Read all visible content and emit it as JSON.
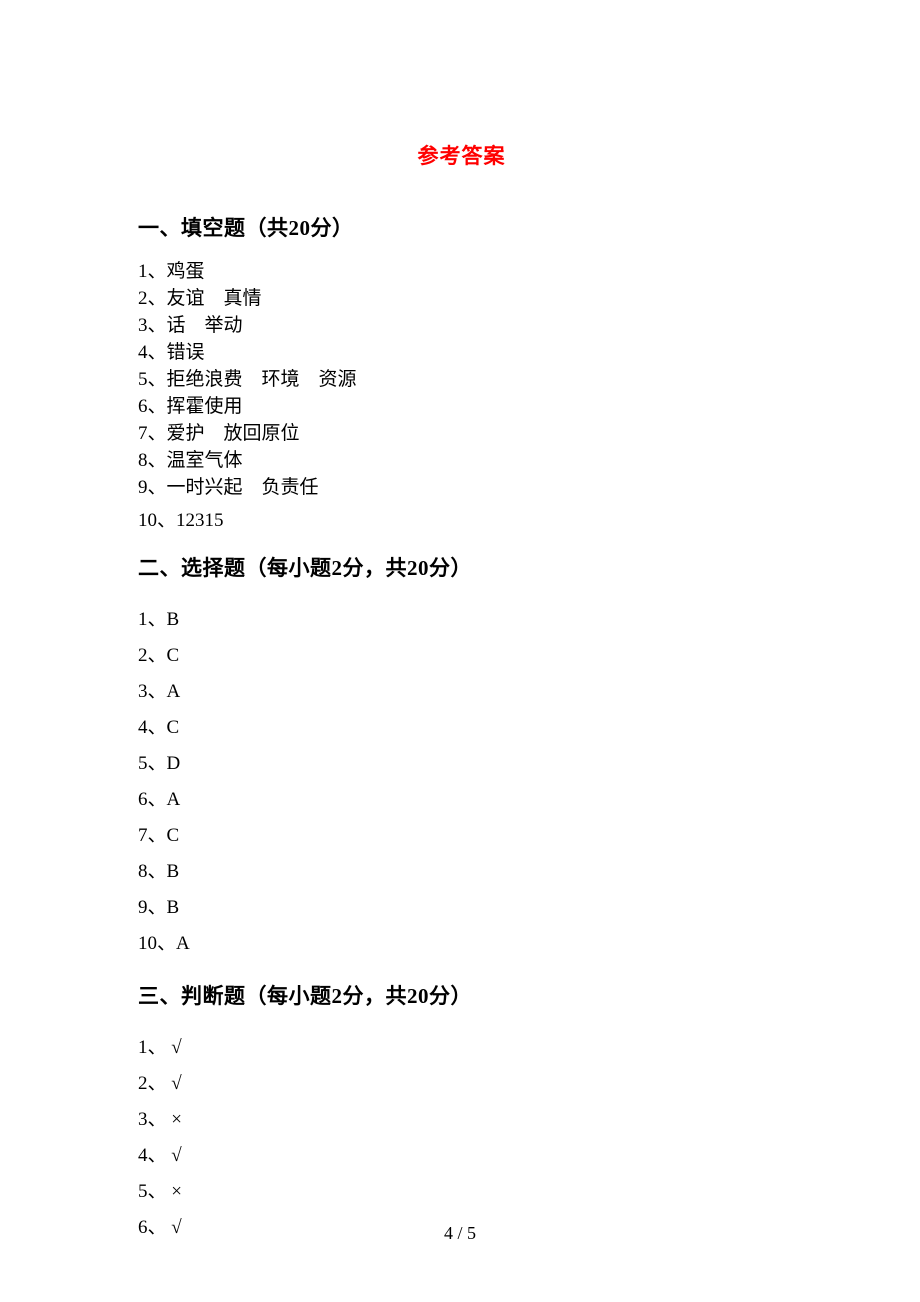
{
  "title": "参考答案",
  "title_color": "#ff0000",
  "body_color": "#000000",
  "background_color": "#ffffff",
  "font_family": "SimSun",
  "section1": {
    "heading": "一、填空题（共20分）",
    "items": [
      "1、鸡蛋",
      "2、友谊    真情",
      "3、话    举动",
      "4、错误",
      "5、拒绝浪费    环境    资源",
      "6、挥霍使用",
      "7、爱护    放回原位",
      "8、温室气体",
      "9、一时兴起    负责任",
      "10、12315"
    ]
  },
  "section2": {
    "heading": "二、选择题（每小题2分，共20分）",
    "items": [
      "1、B",
      "2、C",
      "3、A",
      "4、C",
      "5、D",
      "6、A",
      "7、C",
      "8、B",
      "9、B",
      "10、A"
    ]
  },
  "section3": {
    "heading": "三、判断题（每小题2分，共20分）",
    "items": [
      "1、 √",
      "2、 √",
      "3、 ×",
      "4、 √",
      "5、 ×",
      "6、 √"
    ]
  },
  "page_number": "4 / 5"
}
